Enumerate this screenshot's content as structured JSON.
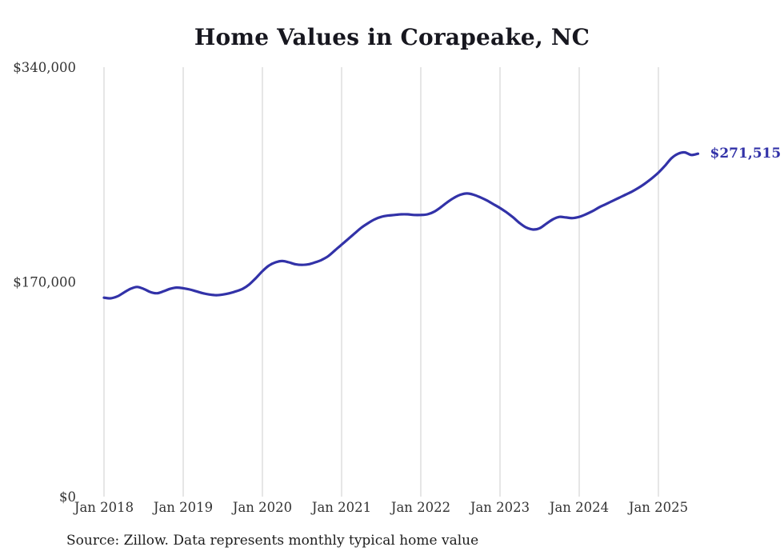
{
  "header": {
    "title": "Home Values in Corapeake, NC"
  },
  "annotation": {
    "end_value_label": "$271,515"
  },
  "footer": {
    "source": "Source: Zillow. Data represents monthly typical home value"
  },
  "colors": {
    "line": "#3232a8",
    "grid": "#cccccc",
    "tick_text": "#333333",
    "title_text": "#17171f",
    "annotation_text": "#3232a8"
  },
  "chart_data": {
    "type": "line",
    "title": "Home Values in Corapeake, NC",
    "frequency": "monthly",
    "x_start": "2018-01",
    "x_end": "2025-07",
    "xtick_labels": [
      "Jan 2018",
      "Jan 2019",
      "Jan 2020",
      "Jan 2021",
      "Jan 2022",
      "Jan 2023",
      "Jan 2024",
      "Jan 2025"
    ],
    "xtick_month_indices": [
      0,
      12,
      24,
      36,
      48,
      60,
      72,
      84
    ],
    "ylim": [
      0,
      340000
    ],
    "ytick_values": [
      0,
      170000,
      340000
    ],
    "ytick_labels": [
      "$0",
      "$170,000",
      "$340,000"
    ],
    "grid": "vertical-only",
    "legend": "none",
    "end_label": "$271,515",
    "end_value": 271515,
    "series": [
      {
        "name": "Typical home value",
        "values": [
          157500,
          157000,
          158500,
          161500,
          164500,
          166000,
          164500,
          162000,
          161000,
          162500,
          164500,
          165500,
          165000,
          164000,
          162500,
          161000,
          160000,
          159500,
          160000,
          161000,
          162500,
          164500,
          168000,
          173000,
          178500,
          183000,
          185500,
          186500,
          185500,
          184000,
          183500,
          184000,
          185500,
          187500,
          190500,
          195000,
          199500,
          204000,
          208500,
          213000,
          216500,
          219500,
          221500,
          222500,
          223000,
          223500,
          223500,
          223000,
          223000,
          223500,
          225500,
          229000,
          233000,
          236500,
          239000,
          240000,
          239000,
          237000,
          234500,
          231500,
          228500,
          225000,
          221000,
          216500,
          213000,
          211500,
          212500,
          216000,
          219500,
          221500,
          221000,
          220500,
          221500,
          223500,
          226000,
          229000,
          231500,
          234000,
          236500,
          239000,
          241500,
          244500,
          248000,
          252000,
          256500,
          262000,
          268000,
          271500,
          272500,
          270500,
          271515
        ]
      }
    ]
  }
}
